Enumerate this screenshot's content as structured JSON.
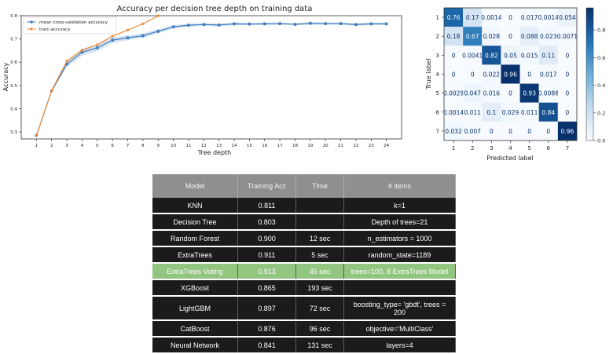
{
  "chart_data": [
    {
      "type": "line",
      "title": "Accuracy per decision tree depth on training data",
      "xlabel": "Tree depth",
      "ylabel": "Accuracy",
      "x": [
        1,
        2,
        3,
        4,
        5,
        6,
        7,
        8,
        9,
        10,
        11,
        12,
        13,
        14,
        15,
        16,
        17,
        18,
        19,
        20,
        21,
        22,
        23,
        24
      ],
      "xlim": [
        0,
        25
      ],
      "ylim": [
        0.27,
        0.8
      ],
      "yticks": [
        0.3,
        0.4,
        0.5,
        0.6,
        0.7,
        0.8
      ],
      "legend_position": "top-left",
      "series": [
        {
          "name": "mean cross-validation accuracy",
          "color": "#3f7fbf",
          "values": [
            0.285,
            0.477,
            0.592,
            0.643,
            0.662,
            0.695,
            0.705,
            0.714,
            0.733,
            0.752,
            0.759,
            0.762,
            0.76,
            0.765,
            0.764,
            0.765,
            0.766,
            0.763,
            0.767,
            0.766,
            0.766,
            0.762,
            0.765,
            0.765
          ],
          "band_lower": [
            0.285,
            0.472,
            0.58,
            0.628,
            0.648,
            0.682,
            0.695,
            0.704,
            0.724,
            0.745,
            0.753,
            0.756,
            0.754,
            0.759,
            0.759,
            0.76,
            0.761,
            0.758,
            0.762,
            0.761,
            0.761,
            0.756,
            0.76,
            0.76
          ],
          "band_upper": [
            0.285,
            0.482,
            0.604,
            0.658,
            0.676,
            0.708,
            0.715,
            0.724,
            0.742,
            0.759,
            0.765,
            0.768,
            0.766,
            0.771,
            0.769,
            0.77,
            0.771,
            0.768,
            0.772,
            0.771,
            0.771,
            0.768,
            0.77,
            0.77
          ]
        },
        {
          "name": "train accuracy",
          "color": "#ef8a35",
          "values": [
            0.285,
            0.478,
            0.605,
            0.652,
            0.675,
            0.712,
            0.738,
            0.765,
            0.8,
            null,
            null,
            null,
            null,
            null,
            null,
            null,
            null,
            null,
            null,
            null,
            null,
            null,
            null,
            null
          ]
        }
      ]
    },
    {
      "type": "heatmap",
      "xlabel": "Predicted label",
      "ylabel": "True label",
      "labels": [
        "1",
        "2",
        "3",
        "4",
        "5",
        "6",
        "7"
      ],
      "colorbar_ticks": [
        0.0,
        0.2,
        0.4,
        0.6,
        0.8
      ],
      "colorbar_range": [
        0,
        0.96
      ],
      "values": [
        [
          0.76,
          0.17,
          0.0014,
          0,
          0.017,
          0.0014,
          0.054
        ],
        [
          0.18,
          0.67,
          0.028,
          0,
          0.088,
          0.023,
          0.0071
        ],
        [
          0,
          0.0041,
          0.82,
          0.05,
          0.015,
          0.11,
          0
        ],
        [
          0,
          0,
          0.022,
          0.96,
          0,
          0.017,
          0
        ],
        [
          0.0029,
          0.047,
          0.016,
          0,
          0.93,
          0.0088,
          0
        ],
        [
          0.0014,
          0.011,
          0.1,
          0.029,
          0.011,
          0.84,
          0
        ],
        [
          0.032,
          0.007,
          0,
          0,
          0,
          0,
          0.96
        ]
      ],
      "cell_text": [
        [
          "0.76",
          "0.17",
          "0.0014",
          "0",
          "0.017",
          "0.0014",
          "0.054"
        ],
        [
          "0.18",
          "0.67",
          "0.028",
          "0",
          "0.088",
          "0.023",
          "0.0071"
        ],
        [
          "0",
          "0.0041",
          "0.82",
          "0.05",
          "0.015",
          "0.11",
          "0"
        ],
        [
          "0",
          "0",
          "0.022",
          "0.96",
          "0",
          "0.017",
          "0"
        ],
        [
          "0.0029",
          "0.047",
          "0.016",
          "0",
          "0.93",
          "0.0088",
          "0"
        ],
        [
          "0.0014",
          "0.011",
          "0.1",
          "0.029",
          "0.011",
          "0.84",
          "0"
        ],
        [
          "0.032",
          "0.007",
          "0",
          "0",
          "0",
          "0",
          "0.96"
        ]
      ]
    }
  ],
  "results_table": {
    "headers": [
      "Model",
      "Training Acc",
      "Time",
      "# items"
    ],
    "highlight_color": "#92c580",
    "rows": [
      {
        "model": "KNN",
        "acc": "0.811",
        "time": "",
        "items": "k=1"
      },
      {
        "model": "Decision Tree",
        "acc": "0.803",
        "time": "",
        "items": "Depth of trees=21"
      },
      {
        "model": "Random Forest",
        "acc": "0.900",
        "time": "12 sec",
        "items": "n_estimators = 1000"
      },
      {
        "model": "ExtraTrees",
        "acc": "0.911",
        "time": "5 sec",
        "items": "random_state=1189"
      },
      {
        "model": "ExtraTrees Voting",
        "acc": "0.913",
        "time": "45 sec",
        "items": "trees=100, 8 ExtraTrees Model",
        "highlight": true
      },
      {
        "model": "XGBoost",
        "acc": "0.865",
        "time": "193 sec",
        "items": ""
      },
      {
        "model": "LightGBM",
        "acc": "0.897",
        "time": "72 sec",
        "items": "boosting_type= 'gbdt', trees = 200",
        "tall": true
      },
      {
        "model": "CatBoost",
        "acc": "0.876",
        "time": "96 sec",
        "items": "objective='MultiClass'"
      },
      {
        "model": "Neural Network",
        "acc": "0.841",
        "time": "131 sec",
        "items": "layers=4"
      }
    ]
  }
}
